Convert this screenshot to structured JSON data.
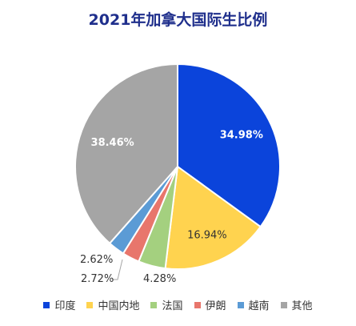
{
  "chart_data": {
    "type": "pie",
    "title": "2021年加拿大国际生比例",
    "slices": [
      {
        "label": "印度",
        "value": 34.98,
        "display": "34.98%",
        "color": "#0b44db"
      },
      {
        "label": "中国内地",
        "value": 16.94,
        "display": "16.94%",
        "color": "#ffd34f"
      },
      {
        "label": "法国",
        "value": 4.28,
        "display": "4.28%",
        "color": "#a4d07f"
      },
      {
        "label": "伊朗",
        "value": 2.72,
        "display": "2.72%",
        "color": "#e8766c"
      },
      {
        "label": "越南",
        "value": 2.62,
        "display": "2.62%",
        "color": "#5b9bd5"
      },
      {
        "label": "其他",
        "value": 38.46,
        "display": "38.46%",
        "color": "#a5a5a5"
      }
    ],
    "start_angle_deg": 0,
    "direction": "clockwise",
    "legend_position": "bottom"
  }
}
